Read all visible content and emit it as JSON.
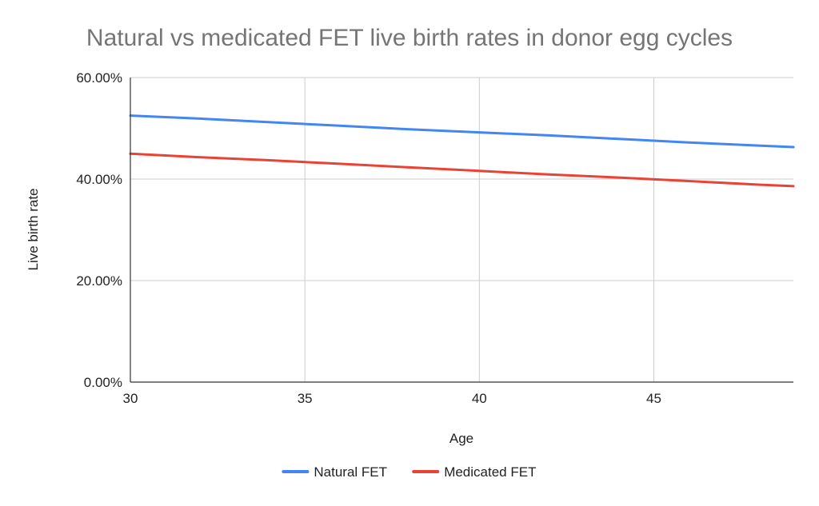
{
  "chart_data": {
    "type": "line",
    "title": "Natural vs medicated FET live birth rates in donor egg cycles",
    "xlabel": "Age",
    "ylabel": "Live birth rate",
    "xlim": [
      30,
      49
    ],
    "ylim": [
      0,
      0.6
    ],
    "x_ticks": [
      30,
      35,
      40,
      45
    ],
    "x_tick_labels": [
      "30",
      "35",
      "40",
      "45"
    ],
    "y_ticks": [
      0,
      0.2,
      0.4,
      0.6
    ],
    "y_tick_labels": [
      "0.00%",
      "20.00%",
      "40.00%",
      "60.00%"
    ],
    "grid": true,
    "legend_position": "bottom",
    "x": [
      30,
      32,
      34,
      36,
      38,
      40,
      42,
      44,
      46,
      48,
      49
    ],
    "series": [
      {
        "name": "Natural FET",
        "color": "#4285f4",
        "values": [
          0.525,
          0.519,
          0.512,
          0.505,
          0.498,
          0.492,
          0.486,
          0.479,
          0.472,
          0.466,
          0.463
        ]
      },
      {
        "name": "Medicated FET",
        "color": "#ea4335",
        "values": [
          0.45,
          0.443,
          0.437,
          0.43,
          0.423,
          0.416,
          0.409,
          0.403,
          0.396,
          0.389,
          0.386
        ]
      }
    ]
  }
}
